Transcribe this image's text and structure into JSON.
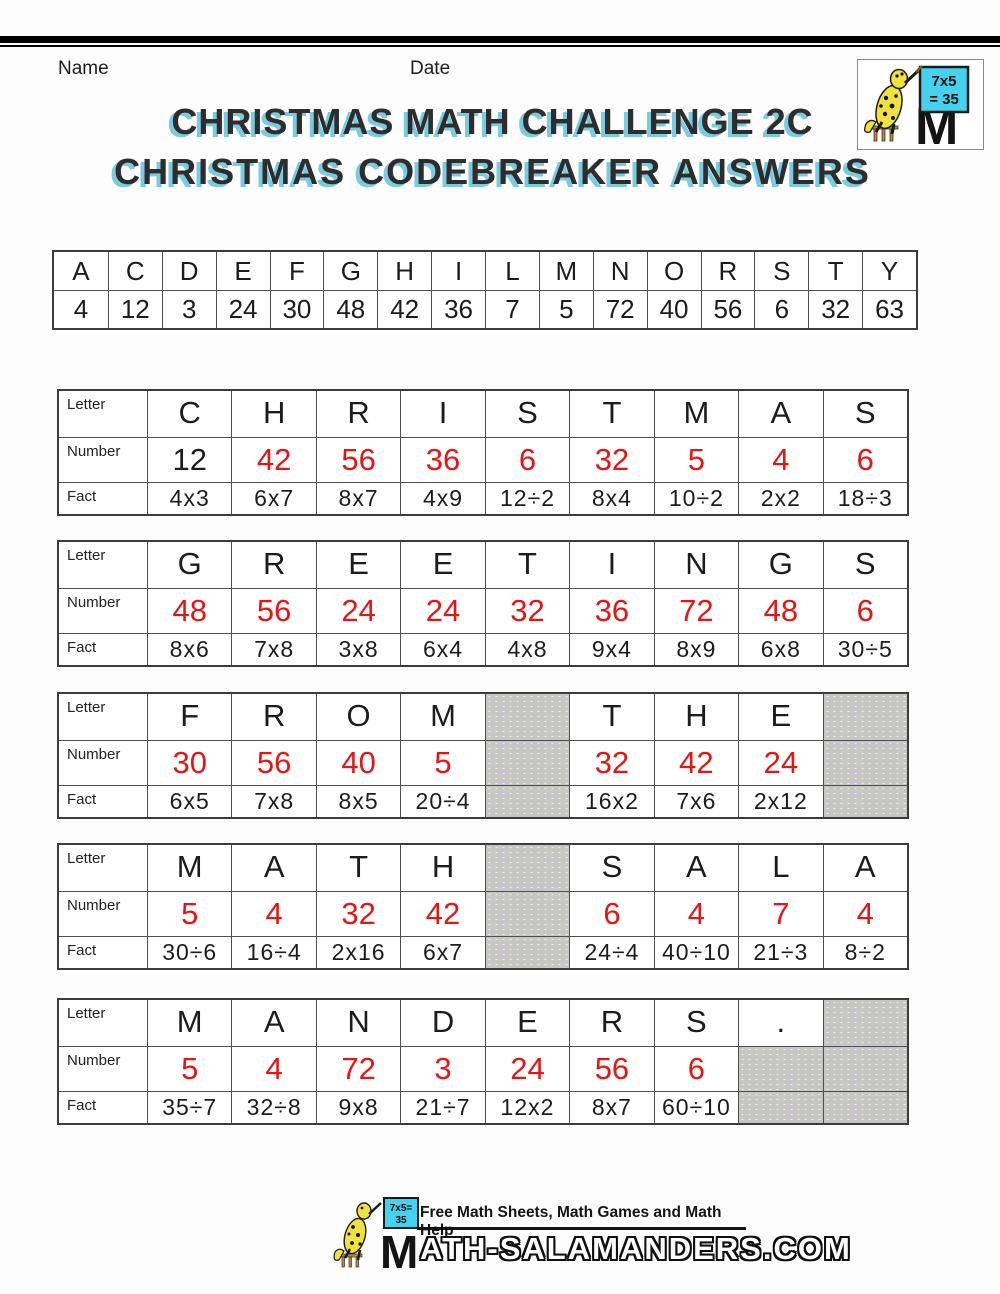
{
  "header": {
    "name_label": "Name",
    "date_label": "Date"
  },
  "title": {
    "line1": "CHRISTMAS MATH CHALLENGE 2C",
    "line2": "CHRISTMAS CODEBREAKER ANSWERS"
  },
  "corner_logo": {
    "board_top": "7x5",
    "board_bottom": "= 35"
  },
  "key_table": {
    "letters": [
      "A",
      "C",
      "D",
      "E",
      "F",
      "G",
      "H",
      "I",
      "L",
      "M",
      "N",
      "O",
      "R",
      "S",
      "T",
      "Y"
    ],
    "numbers": [
      "4",
      "12",
      "3",
      "24",
      "30",
      "48",
      "42",
      "36",
      "7",
      "5",
      "72",
      "40",
      "56",
      "6",
      "32",
      "63"
    ]
  },
  "row_labels": {
    "letter": "Letter",
    "number": "Number",
    "fact": "Fact"
  },
  "answer_tables": [
    {
      "letters": [
        "C",
        "H",
        "R",
        "I",
        "S",
        "T",
        "M",
        "A",
        "S"
      ],
      "numbers": [
        "12",
        "42",
        "56",
        "36",
        "6",
        "32",
        "5",
        "4",
        "6"
      ],
      "facts": [
        "4x3",
        "6x7",
        "8x7",
        "4x9",
        "12÷2",
        "8x4",
        "10÷2",
        "2x2",
        "18÷3"
      ],
      "black_numbers": [
        0
      ],
      "gray": {
        "letters": [],
        "numbers": [],
        "facts": []
      }
    },
    {
      "letters": [
        "G",
        "R",
        "E",
        "E",
        "T",
        "I",
        "N",
        "G",
        "S"
      ],
      "numbers": [
        "48",
        "56",
        "24",
        "24",
        "32",
        "36",
        "72",
        "48",
        "6"
      ],
      "facts": [
        "8x6",
        "7x8",
        "3x8",
        "6x4",
        "4x8",
        "9x4",
        "8x9",
        "6x8",
        "30÷5"
      ],
      "black_numbers": [],
      "gray": {
        "letters": [],
        "numbers": [],
        "facts": []
      }
    },
    {
      "letters": [
        "F",
        "R",
        "O",
        "M",
        "",
        "T",
        "H",
        "E",
        ""
      ],
      "numbers": [
        "30",
        "56",
        "40",
        "5",
        "",
        "32",
        "42",
        "24",
        ""
      ],
      "facts": [
        "6x5",
        "7x8",
        "8x5",
        "20÷4",
        "",
        "16x2",
        "7x6",
        "2x12",
        ""
      ],
      "black_numbers": [],
      "gray": {
        "letters": [
          4,
          8
        ],
        "numbers": [
          4,
          8
        ],
        "facts": [
          4,
          8
        ]
      }
    },
    {
      "letters": [
        "M",
        "A",
        "T",
        "H",
        "",
        "S",
        "A",
        "L",
        "A"
      ],
      "numbers": [
        "5",
        "4",
        "32",
        "42",
        "",
        "6",
        "4",
        "7",
        "4"
      ],
      "facts": [
        "30÷6",
        "16÷4",
        "2x16",
        "6x7",
        "",
        "24÷4",
        "40÷10",
        "21÷3",
        "8÷2"
      ],
      "black_numbers": [],
      "gray": {
        "letters": [
          4
        ],
        "numbers": [
          4
        ],
        "facts": [
          4
        ]
      }
    },
    {
      "letters": [
        "M",
        "A",
        "N",
        "D",
        "E",
        "R",
        "S",
        ".",
        ""
      ],
      "numbers": [
        "5",
        "4",
        "72",
        "3",
        "24",
        "56",
        "6",
        "",
        ""
      ],
      "facts": [
        "35÷7",
        "32÷8",
        "9x8",
        "21÷7",
        "12x2",
        "8x7",
        "60÷10",
        "",
        ""
      ],
      "black_numbers": [],
      "gray": {
        "letters": [
          8
        ],
        "numbers": [
          7,
          8
        ],
        "facts": [
          7,
          8
        ]
      }
    }
  ],
  "footer": {
    "tagline": "Free Math Sheets, Math Games and Math Help",
    "site": "ath-salamanders.com",
    "board_top": "7x5=",
    "board_bottom": "35"
  },
  "colors": {
    "number_red": "#e81414",
    "title_shadow": "#79cbe0",
    "gray_cell": "#c6c6c6",
    "board_cyan": "#45d2ee",
    "salamander_yellow": "#efe23d"
  }
}
